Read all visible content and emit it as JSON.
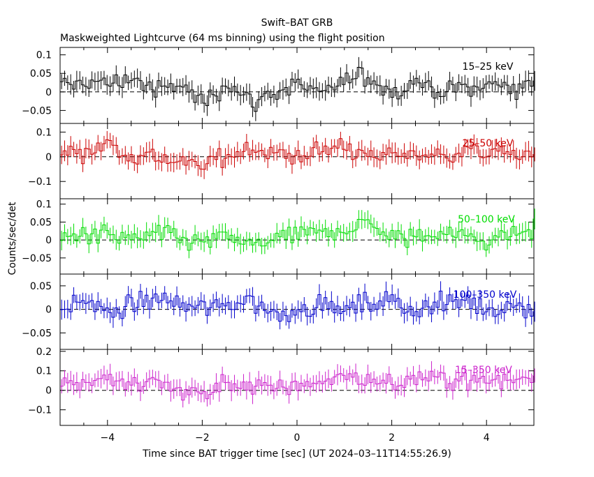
{
  "figure": {
    "title": "Swift–BAT GRB",
    "subtitle": "Maskweighted Lightcurve (64 ms binning) using the flight position",
    "ylabel": "Counts/sec/det",
    "xlabel": "Time since BAT trigger time [sec] (UT 2024–03–11T14:55:26.9)",
    "x_tick_labels": [
      "−4",
      "−2",
      "0",
      "2",
      "4"
    ]
  },
  "chart_data": [
    {
      "type": "line",
      "label": "15–25 keV",
      "color": "#000000",
      "xlim": [
        -5,
        5
      ],
      "ylim": [
        -0.085,
        0.12
      ],
      "y_ticks": [
        0.1,
        0.05,
        0,
        -0.05
      ],
      "y_tick_labels": [
        "0.1",
        "0.05",
        "0",
        "−0.05"
      ],
      "x": [
        -5.0,
        -4.5,
        -4.0,
        -3.5,
        -3.0,
        -2.5,
        -2.0,
        -1.5,
        -1.0,
        -0.5,
        0.0,
        0.5,
        1.0,
        1.5,
        2.0,
        2.5,
        3.0,
        3.5,
        4.0,
        4.5,
        5.0
      ],
      "y": [
        0.01,
        0.03,
        0.02,
        0.04,
        0.0,
        0.02,
        -0.03,
        0.03,
        -0.03,
        0.0,
        0.02,
        -0.01,
        0.03,
        0.04,
        0.0,
        0.03,
        0.0,
        0.01,
        0.02,
        0.01,
        0.03
      ]
    },
    {
      "type": "line",
      "label": "25–50 keV",
      "color": "#cc0000",
      "xlim": [
        -5,
        5
      ],
      "ylim": [
        -0.17,
        0.135
      ],
      "y_ticks": [
        0.1,
        0,
        -0.1
      ],
      "y_tick_labels": [
        "0.1",
        "0",
        "−0.1"
      ],
      "x": [
        -5.0,
        -4.5,
        -4.0,
        -3.5,
        -3.0,
        -2.5,
        -2.0,
        -1.5,
        -1.0,
        -0.5,
        0.0,
        0.5,
        1.0,
        1.5,
        2.0,
        2.5,
        3.0,
        3.5,
        4.0,
        4.5,
        5.0
      ],
      "y": [
        0.02,
        0.03,
        0.05,
        0.0,
        0.01,
        -0.03,
        -0.04,
        0.01,
        0.04,
        0.0,
        0.01,
        0.02,
        0.05,
        -0.01,
        0.02,
        0.01,
        0.0,
        0.03,
        0.01,
        0.02,
        0.0
      ]
    },
    {
      "type": "line",
      "label": "50–100 keV",
      "color": "#00dd00",
      "xlim": [
        -5,
        5
      ],
      "ylim": [
        -0.095,
        0.115
      ],
      "y_ticks": [
        0.1,
        0.05,
        0,
        -0.05
      ],
      "y_tick_labels": [
        "0.1",
        "0.05",
        "0",
        "−0.05"
      ],
      "x": [
        -5.0,
        -4.5,
        -4.0,
        -3.5,
        -3.0,
        -2.5,
        -2.0,
        -1.5,
        -1.0,
        -0.5,
        0.0,
        0.5,
        1.0,
        1.5,
        2.0,
        2.5,
        3.0,
        3.5,
        4.0,
        4.5,
        5.0
      ],
      "y": [
        0.0,
        0.02,
        0.01,
        0.0,
        0.02,
        0.0,
        -0.01,
        0.01,
        -0.02,
        0.0,
        0.01,
        0.02,
        0.03,
        0.05,
        0.0,
        0.01,
        0.02,
        0.01,
        0.0,
        0.02,
        0.03
      ]
    },
    {
      "type": "line",
      "label": "100–350 keV",
      "color": "#0000cc",
      "xlim": [
        -5,
        5
      ],
      "ylim": [
        -0.085,
        0.075
      ],
      "y_ticks": [
        0.05,
        0,
        -0.05
      ],
      "y_tick_labels": [
        "0.05",
        "0",
        "−0.05"
      ],
      "x": [
        -5.0,
        -4.5,
        -4.0,
        -3.5,
        -3.0,
        -2.5,
        -2.0,
        -1.5,
        -1.0,
        -0.5,
        0.0,
        0.5,
        1.0,
        1.5,
        2.0,
        2.5,
        3.0,
        3.5,
        4.0,
        4.5,
        5.0
      ],
      "y": [
        0.0,
        0.02,
        -0.01,
        0.01,
        0.02,
        0.01,
        0.0,
        0.01,
        0.02,
        -0.01,
        0.0,
        0.01,
        0.0,
        0.01,
        0.02,
        0.0,
        0.01,
        0.02,
        0.0,
        0.01,
        0.0
      ]
    },
    {
      "type": "line",
      "label": "15–350 keV",
      "color": "#cc22cc",
      "xlim": [
        -5,
        5
      ],
      "ylim": [
        -0.18,
        0.21
      ],
      "y_ticks": [
        0.2,
        0.1,
        0,
        -0.1
      ],
      "y_tick_labels": [
        "0.2",
        "0.1",
        "0",
        "−0.1"
      ],
      "x": [
        -5.0,
        -4.5,
        -4.0,
        -3.5,
        -3.0,
        -2.5,
        -2.0,
        -1.5,
        -1.0,
        -0.5,
        0.0,
        0.5,
        1.0,
        1.5,
        2.0,
        2.5,
        3.0,
        3.5,
        4.0,
        4.5,
        5.0
      ],
      "y": [
        0.05,
        0.04,
        0.06,
        0.02,
        0.05,
        0.0,
        -0.02,
        0.04,
        0.02,
        0.0,
        0.03,
        0.04,
        0.08,
        0.05,
        0.03,
        0.06,
        0.05,
        0.06,
        0.04,
        0.05,
        0.08
      ]
    }
  ]
}
